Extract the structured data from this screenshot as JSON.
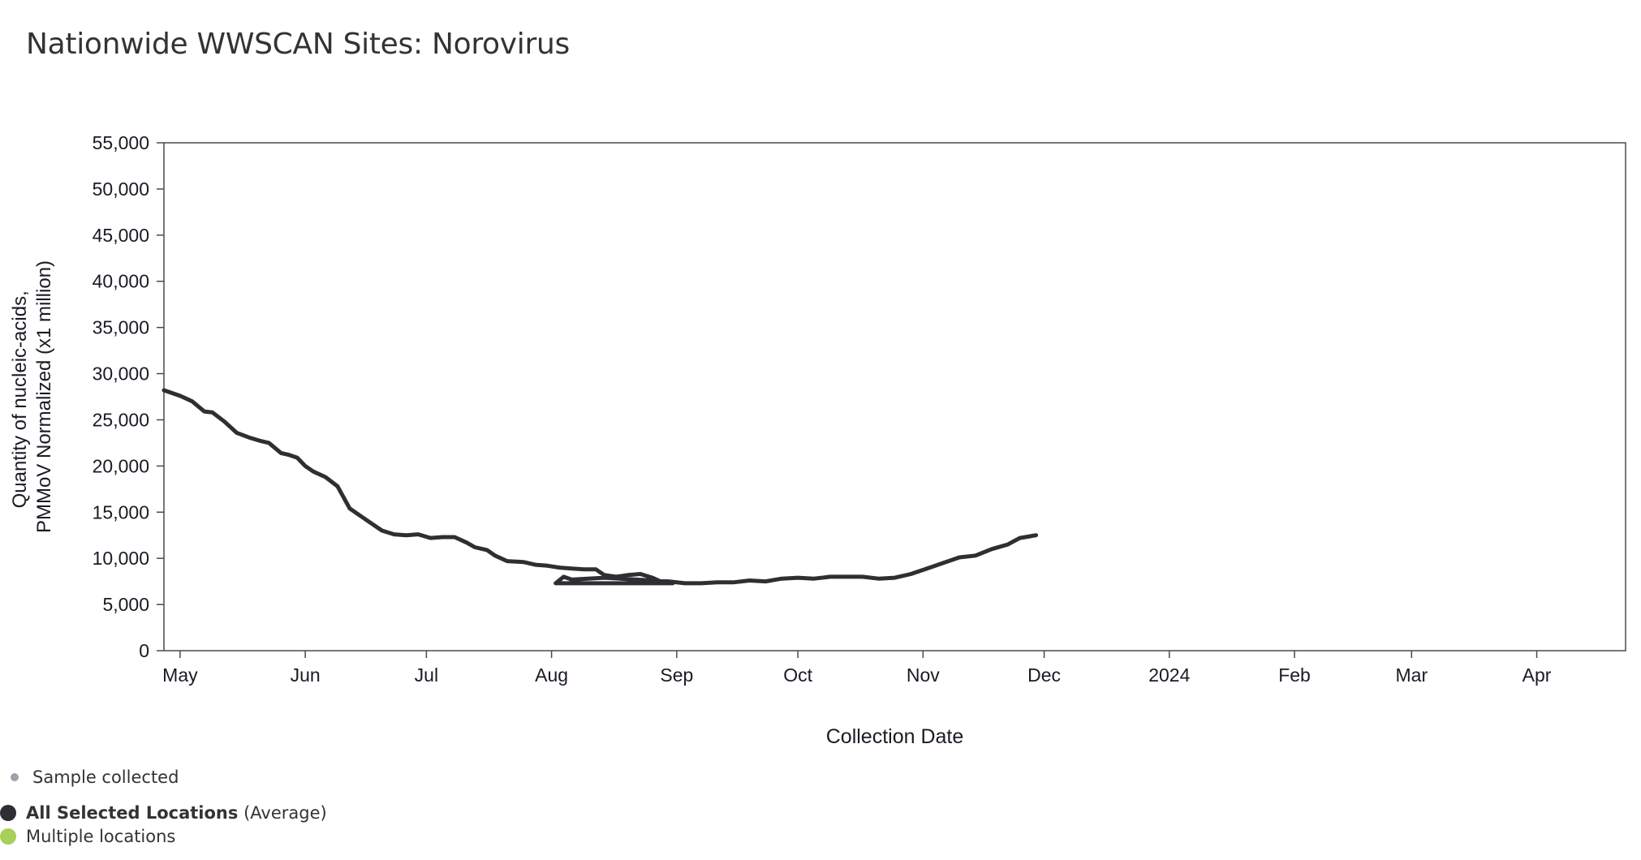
{
  "chart_data": {
    "type": "line",
    "title": "Nationwide WWSCAN Sites: Norovirus",
    "xlabel": "Collection Date",
    "ylabel_lines": [
      "Quantity of nucleic-acids,",
      "PMMoV Normalized (x1 million)"
    ],
    "ylim": [
      0,
      55000
    ],
    "xlim": [
      "2023-04-27",
      "2024-04-23"
    ],
    "y_ticks": [
      {
        "value": 0,
        "label": "0"
      },
      {
        "value": 5000,
        "label": "5,000"
      },
      {
        "value": 10000,
        "label": "10,000"
      },
      {
        "value": 15000,
        "label": "15,000"
      },
      {
        "value": 20000,
        "label": "20,000"
      },
      {
        "value": 25000,
        "label": "25,000"
      },
      {
        "value": 30000,
        "label": "30,000"
      },
      {
        "value": 35000,
        "label": "35,000"
      },
      {
        "value": 40000,
        "label": "40,000"
      },
      {
        "value": 45000,
        "label": "45,000"
      },
      {
        "value": 50000,
        "label": "50,000"
      },
      {
        "value": 55000,
        "label": "55,000"
      }
    ],
    "x_ticks": [
      {
        "date": "2023-05-01",
        "label": "May"
      },
      {
        "date": "2023-06-01",
        "label": "Jun"
      },
      {
        "date": "2023-07-01",
        "label": "Jul"
      },
      {
        "date": "2023-08-01",
        "label": "Aug"
      },
      {
        "date": "2023-09-01",
        "label": "Sep"
      },
      {
        "date": "2023-10-01",
        "label": "Oct"
      },
      {
        "date": "2023-11-01",
        "label": "Nov"
      },
      {
        "date": "2023-12-01",
        "label": "Dec"
      },
      {
        "date": "2024-01-01",
        "label": "2024"
      },
      {
        "date": "2024-02-01",
        "label": "Feb"
      },
      {
        "date": "2024-03-01",
        "label": "Mar"
      },
      {
        "date": "2024-04-01",
        "label": "Apr"
      }
    ],
    "grid": false,
    "legend_position": "bottom-left",
    "series": [
      {
        "name": "All Selected Locations",
        "color": "#2f2f33",
        "points": [
          [
            "2023-04-27",
            28200
          ],
          [
            "2023-05-01",
            27600
          ],
          [
            "2023-05-04",
            27000
          ],
          [
            "2023-05-07",
            25900
          ],
          [
            "2023-05-09",
            25800
          ],
          [
            "2023-05-12",
            24800
          ],
          [
            "2023-05-15",
            23600
          ],
          [
            "2023-05-18",
            23100
          ],
          [
            "2023-05-21",
            22700
          ],
          [
            "2023-05-23",
            22500
          ],
          [
            "2023-05-26",
            21400
          ],
          [
            "2023-05-28",
            21200
          ],
          [
            "2023-05-30",
            20900
          ],
          [
            "2023-06-01",
            20000
          ],
          [
            "2023-06-03",
            19400
          ],
          [
            "2023-06-06",
            18800
          ],
          [
            "2023-06-09",
            17800
          ],
          [
            "2023-06-12",
            15400
          ],
          [
            "2023-06-15",
            14500
          ],
          [
            "2023-06-17",
            13900
          ],
          [
            "2023-06-20",
            13000
          ],
          [
            "2023-06-23",
            12600
          ],
          [
            "2023-06-26",
            12500
          ],
          [
            "2023-06-29",
            12600
          ],
          [
            "2023-07-02",
            12200
          ],
          [
            "2023-07-05",
            12300
          ],
          [
            "2023-07-08",
            12300
          ],
          [
            "2023-07-11",
            11700
          ],
          [
            "2023-07-13",
            11200
          ],
          [
            "2023-07-16",
            10900
          ],
          [
            "2023-07-18",
            10300
          ],
          [
            "2023-07-21",
            9700
          ],
          [
            "2023-07-25",
            9600
          ],
          [
            "2023-07-28",
            9300
          ],
          [
            "2023-07-31",
            9200
          ],
          [
            "2023-08-03",
            9000
          ],
          [
            "2023-08-06",
            8900
          ],
          [
            "2023-08-09",
            8800
          ],
          [
            "2023-08-12",
            8800
          ],
          [
            "2023-08-14",
            8200
          ],
          [
            "2023-08-17",
            8000
          ],
          [
            "2023-08-20",
            8200
          ],
          [
            "2023-08-23",
            8300
          ],
          [
            "2023-08-26",
            7900
          ],
          [
            "2023-08-28",
            7500
          ],
          [
            "2023-08-31",
            7300
          ],
          [
            "2023-08-02",
            7300
          ],
          [
            "2023-08-04",
            8000
          ],
          [
            "2023-08-06",
            7700
          ],
          [
            "2023-08-10",
            7800
          ],
          [
            "2023-08-14",
            7900
          ],
          [
            "2023-08-18",
            7800
          ],
          [
            "2023-08-22",
            7700
          ],
          [
            "2023-08-26",
            7600
          ],
          [
            "2023-08-30",
            7500
          ],
          [
            "2023-09-03",
            7300
          ],
          [
            "2023-09-07",
            7300
          ],
          [
            "2023-09-11",
            7400
          ],
          [
            "2023-09-15",
            7400
          ],
          [
            "2023-09-19",
            7600
          ],
          [
            "2023-09-23",
            7500
          ],
          [
            "2023-09-27",
            7800
          ],
          [
            "2023-10-01",
            7900
          ],
          [
            "2023-10-05",
            7800
          ],
          [
            "2023-10-09",
            8000
          ],
          [
            "2023-10-13",
            8000
          ],
          [
            "2023-10-17",
            8000
          ],
          [
            "2023-10-21",
            7800
          ],
          [
            "2023-10-25",
            7900
          ],
          [
            "2023-10-29",
            8300
          ],
          [
            "2023-11-02",
            8900
          ],
          [
            "2023-11-06",
            9500
          ],
          [
            "2023-11-10",
            10100
          ],
          [
            "2023-11-14",
            10300
          ],
          [
            "2023-11-18",
            11000
          ],
          [
            "2023-11-22",
            11500
          ],
          [
            "2023-11-25",
            12200
          ],
          [
            "2023-11-29",
            12500
          ]
        ]
      }
    ]
  },
  "legend": {
    "sample": {
      "label": "Sample collected",
      "color": "#a0a0aa"
    },
    "average": {
      "bold_label": "All Selected Locations",
      "suffix": " (Average)",
      "color": "#2f2f33"
    },
    "multiple": {
      "label": "Multiple locations",
      "color": "#a6d05a"
    }
  }
}
